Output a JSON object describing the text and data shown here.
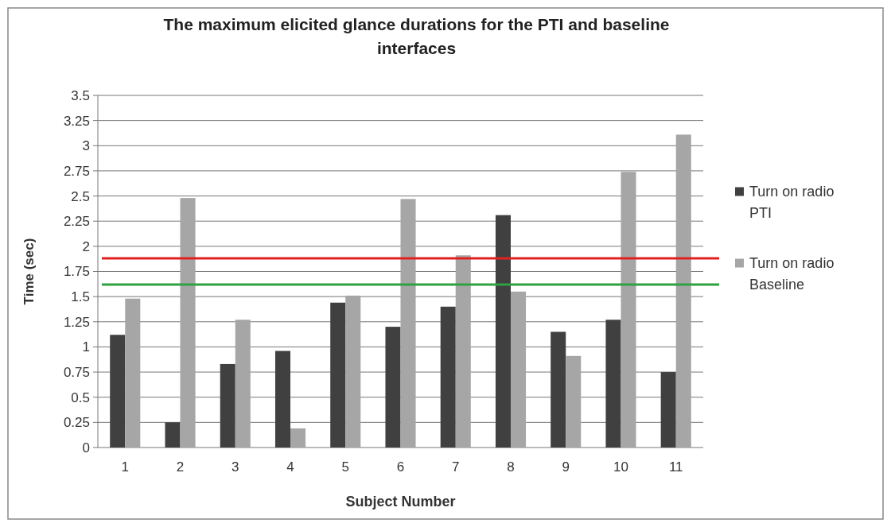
{
  "chart_data": {
    "type": "bar",
    "title": "The maximum elicited glance durations for the PTI and baseline interfaces",
    "xlabel": "Subject Number",
    "ylabel": "Time (sec)",
    "categories": [
      "1",
      "2",
      "3",
      "4",
      "5",
      "6",
      "7",
      "8",
      "9",
      "10",
      "11"
    ],
    "series": [
      {
        "name": "Turn on radio PTI",
        "color": "#404040",
        "values": [
          1.12,
          0.25,
          0.83,
          0.96,
          1.44,
          1.2,
          1.4,
          2.31,
          1.15,
          1.27,
          0.75
        ]
      },
      {
        "name": "Turn on radio Baseline",
        "color": "#a6a6a6",
        "values": [
          1.48,
          2.48,
          1.27,
          0.19,
          1.51,
          2.47,
          1.91,
          1.55,
          0.91,
          2.74,
          3.11
        ]
      }
    ],
    "ylim": [
      0,
      3.5
    ],
    "yticks": [
      0,
      0.25,
      0.5,
      0.75,
      1,
      1.25,
      1.5,
      1.75,
      2,
      2.25,
      2.5,
      2.75,
      3,
      3.25,
      3.5
    ],
    "grid": "y",
    "legend": "right",
    "ref_lines": [
      {
        "axis": "y",
        "value": 1.88,
        "color": "#e02020"
      },
      {
        "axis": "y",
        "value": 1.62,
        "color": "#30a040"
      }
    ]
  }
}
